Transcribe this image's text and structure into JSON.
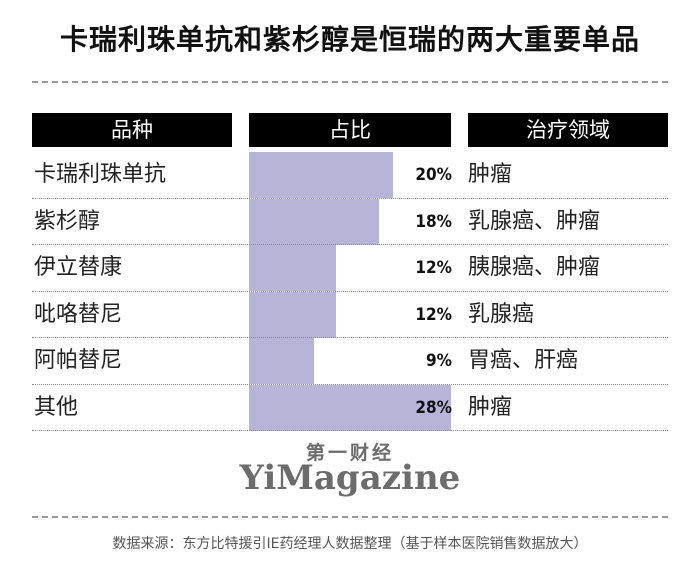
{
  "title": "卡瑞利珠单抗和紫杉醇是恒瑞的两大重要单品",
  "headers": {
    "variety": "品种",
    "share": "占比",
    "therapeutic_area": "治疗领域"
  },
  "chart_data": {
    "type": "bar",
    "orientation": "horizontal",
    "categories": [
      "卡瑞利珠单抗",
      "紫杉醇",
      "伊立替康",
      "吡咯替尼",
      "阿帕替尼",
      "其他"
    ],
    "values": [
      20,
      18,
      12,
      12,
      9,
      28
    ],
    "value_labels": [
      "20%",
      "18%",
      "12%",
      "12%",
      "9%",
      "28%"
    ],
    "therapeutic_areas": [
      "肿瘤",
      "乳腺癌、肿瘤",
      "胰腺癌、肿瘤",
      "乳腺癌",
      "胃癌、肝癌",
      "肿瘤"
    ],
    "xlim": [
      0,
      28
    ],
    "bar_color": "#b7b4d8"
  },
  "brand": {
    "cn": "第一财经",
    "en": "YiMagazine"
  },
  "source": "数据来源：东方比特援引IE药经理人数据整理（基于样本医院销售数据放大）"
}
